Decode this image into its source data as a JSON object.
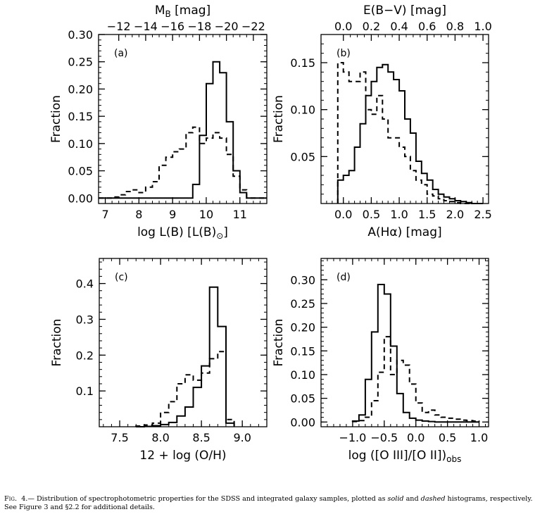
{
  "chart_data": [
    {
      "id": "a",
      "type": "histogram",
      "panel_label": "(a)",
      "xlabel": "log L(B) [L(B)",
      "xlabel_sub": "⊙",
      "xlabel_tail": "]",
      "ylabel": "Fraction",
      "xlim": [
        6.8,
        11.8
      ],
      "ylim": [
        -0.01,
        0.3
      ],
      "xticks": [
        7,
        8,
        9,
        10,
        11
      ],
      "xtick_labels": [
        "7",
        "8",
        "9",
        "10",
        "11"
      ],
      "yticks": [
        0.0,
        0.05,
        0.1,
        0.15,
        0.2,
        0.25,
        0.3
      ],
      "ytick_labels": [
        "0.00",
        "0.05",
        "0.10",
        "0.15",
        "0.20",
        "0.25",
        "0.30"
      ],
      "top_axis": {
        "label": "M",
        "label_sub": "B",
        "label_tail": " [mag]",
        "ticks_x": [
          7.4,
          8.2,
          9.0,
          9.8,
          10.6,
          11.4
        ],
        "tick_labels": [
          "−12",
          "−14",
          "−16",
          "−18",
          "−20",
          "−22"
        ]
      },
      "bin_edges": [
        6.8,
        7.0,
        7.2,
        7.4,
        7.6,
        7.8,
        8.0,
        8.2,
        8.4,
        8.6,
        8.8,
        9.0,
        9.2,
        9.4,
        9.6,
        9.8,
        10.0,
        10.2,
        10.4,
        10.6,
        10.8,
        11.0,
        11.2,
        11.4,
        11.6,
        11.8
      ],
      "series": [
        {
          "style": "solid",
          "values": [
            0,
            0,
            0,
            0,
            0,
            0,
            0,
            0,
            0,
            0,
            0,
            0,
            0,
            0,
            0.025,
            0.115,
            0.21,
            0.25,
            0.23,
            0.14,
            0.05,
            0.01,
            0,
            0,
            0
          ]
        },
        {
          "style": "dashed",
          "values": [
            0,
            0,
            0.002,
            0.006,
            0.012,
            0.015,
            0.01,
            0.02,
            0.03,
            0.06,
            0.075,
            0.085,
            0.09,
            0.12,
            0.13,
            0.1,
            0.11,
            0.12,
            0.11,
            0.08,
            0.04,
            0.015,
            0,
            0,
            0
          ]
        }
      ]
    },
    {
      "id": "b",
      "type": "histogram",
      "panel_label": "(b)",
      "xlabel": "A(Hα) [mag]",
      "ylabel": "Fraction",
      "xlim": [
        -0.4,
        2.6
      ],
      "ylim": [
        0,
        0.18
      ],
      "xticks": [
        0.0,
        0.5,
        1.0,
        1.5,
        2.0,
        2.5
      ],
      "xtick_labels": [
        "0.0",
        "0.5",
        "1.0",
        "1.5",
        "2.0",
        "2.5"
      ],
      "yticks": [
        0.05,
        0.1,
        0.15
      ],
      "ytick_labels": [
        "0.05",
        "0.10",
        "0.15"
      ],
      "top_axis": {
        "label": "E(B−V) [mag]",
        "ticks_x": [
          0.0,
          0.5,
          1.0,
          1.5,
          2.0,
          2.5
        ],
        "tick_labels": [
          "0.0",
          "0.2",
          "0.4",
          "0.6",
          "0.8",
          "1.0"
        ]
      },
      "bin_edges": [
        -0.1,
        0.0,
        0.1,
        0.2,
        0.3,
        0.4,
        0.5,
        0.6,
        0.7,
        0.8,
        0.9,
        1.0,
        1.1,
        1.2,
        1.3,
        1.4,
        1.5,
        1.6,
        1.7,
        1.8,
        1.9,
        2.0,
        2.1,
        2.2,
        2.3,
        2.4,
        2.5
      ],
      "series": [
        {
          "style": "solid",
          "values": [
            0.025,
            0.03,
            0.035,
            0.06,
            0.085,
            0.115,
            0.13,
            0.145,
            0.148,
            0.14,
            0.132,
            0.12,
            0.09,
            0.075,
            0.045,
            0.032,
            0.025,
            0.015,
            0.01,
            0.007,
            0.005,
            0.003,
            0.002,
            0.001,
            0,
            0
          ]
        },
        {
          "style": "dashed",
          "values": [
            0.15,
            0.14,
            0.13,
            0.13,
            0.14,
            0.1,
            0.095,
            0.115,
            0.09,
            0.07,
            0.07,
            0.06,
            0.05,
            0.035,
            0.025,
            0.02,
            0.01,
            0.008,
            0.005,
            0.003,
            0.002,
            0.001,
            0,
            0,
            0,
            0
          ]
        }
      ]
    },
    {
      "id": "c",
      "type": "histogram",
      "panel_label": "(c)",
      "xlabel": "12 + log (O/H)",
      "ylabel": "Fraction",
      "xlim": [
        7.25,
        9.3
      ],
      "ylim": [
        0,
        0.47
      ],
      "xticks": [
        7.5,
        8.0,
        8.5,
        9.0
      ],
      "xtick_labels": [
        "7.5",
        "8.0",
        "8.5",
        "9.0"
      ],
      "yticks": [
        0.1,
        0.2,
        0.3,
        0.4
      ],
      "ytick_labels": [
        "0.1",
        "0.2",
        "0.3",
        "0.4"
      ],
      "bin_edges": [
        7.7,
        7.8,
        7.9,
        8.0,
        8.1,
        8.2,
        8.3,
        8.4,
        8.5,
        8.6,
        8.7,
        8.8,
        8.9
      ],
      "series": [
        {
          "style": "solid",
          "values": [
            0,
            0.001,
            0.003,
            0.006,
            0.012,
            0.03,
            0.055,
            0.11,
            0.17,
            0.39,
            0.28,
            0.01
          ]
        },
        {
          "style": "dashed",
          "values": [
            0.002,
            0.005,
            0.01,
            0.04,
            0.07,
            0.12,
            0.145,
            0.13,
            0.15,
            0.19,
            0.21,
            0.02
          ]
        }
      ]
    },
    {
      "id": "d",
      "type": "histogram",
      "panel_label": "(d)",
      "xlabel": "log ([O III]/[O II])",
      "xlabel_sub": "obs",
      "ylabel": "Fraction",
      "xlim": [
        -1.5,
        1.15
      ],
      "ylim": [
        -0.01,
        0.345
      ],
      "xticks": [
        -1.0,
        -0.5,
        0.0,
        0.5,
        1.0
      ],
      "xtick_labels": [
        "−1.0",
        "−0.5",
        "0.0",
        "0.5",
        "1.0"
      ],
      "yticks": [
        0.0,
        0.05,
        0.1,
        0.15,
        0.2,
        0.25,
        0.3
      ],
      "ytick_labels": [
        "0.00",
        "0.05",
        "0.10",
        "0.15",
        "0.20",
        "0.25",
        "0.30"
      ],
      "bin_edges": [
        -1.0,
        -0.9,
        -0.8,
        -0.7,
        -0.6,
        -0.5,
        -0.4,
        -0.3,
        -0.2,
        -0.1,
        0.0,
        0.1,
        0.2,
        0.3,
        0.4,
        0.5,
        0.6,
        0.7,
        0.8,
        0.9,
        1.0
      ],
      "series": [
        {
          "style": "solid",
          "values": [
            0.002,
            0.015,
            0.09,
            0.19,
            0.29,
            0.27,
            0.16,
            0.06,
            0.02,
            0.008,
            0.004,
            0.002,
            0.001,
            0,
            0,
            0,
            0,
            0,
            0,
            0
          ]
        },
        {
          "style": "dashed",
          "values": [
            0.001,
            0.003,
            0.01,
            0.045,
            0.105,
            0.18,
            0.1,
            0.13,
            0.12,
            0.08,
            0.04,
            0.02,
            0.025,
            0.015,
            0.01,
            0.008,
            0.006,
            0.004,
            0.003,
            0.002
          ]
        }
      ]
    }
  ],
  "caption": {
    "fig_label": "Fig.",
    "fig_number": "4.—",
    "text_1": " Distribution of spectrophotometric properties for the SDSS and integrated galaxy samples, plotted as ",
    "solid_word": "solid",
    "text_2": " and ",
    "dashed_word": "dashed",
    "text_3": " histograms, respectively. See Figure 3 and §2.2 for additional details."
  }
}
